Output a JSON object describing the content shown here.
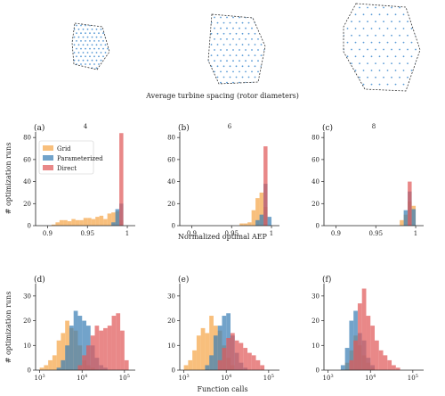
{
  "header": {
    "label": "Average turbine spacing (rotor diameters)"
  },
  "colors": {
    "grid": "#f5a64a",
    "parameterized": "#3b7fb5",
    "direct": "#e05a5a",
    "turbine": "#5a9bd6",
    "boundary": "#333333"
  },
  "legend": {
    "items": [
      "Grid",
      "Parameterized",
      "Direct"
    ]
  },
  "axes": {
    "ylabel_top": "# optimization runs",
    "ylabel_bottom": "# optimization runs",
    "xlabel_top": "Normalized optimal AEP",
    "xlabel_bottom": "Function calls"
  },
  "chart_data": [
    {
      "type": "bar",
      "panel": "(a)",
      "spacing": "4",
      "xlim": [
        0.885,
        1.01
      ],
      "ylim": [
        0,
        85
      ],
      "x_ticks": [
        "0.9",
        "0.95",
        "1"
      ],
      "y_ticks": [
        "0",
        "20",
        "40",
        "60",
        "80"
      ],
      "bin_edges": [
        0.905,
        0.91,
        0.915,
        0.92,
        0.925,
        0.93,
        0.935,
        0.94,
        0.945,
        0.95,
        0.955,
        0.96,
        0.965,
        0.97,
        0.975,
        0.98,
        0.985,
        0.99,
        0.995,
        1.0
      ],
      "series": [
        {
          "name": "Grid",
          "values": [
            1,
            3,
            5,
            5,
            4,
            6,
            5,
            5,
            7,
            7,
            6,
            8,
            9,
            6,
            11,
            12,
            13,
            5,
            0
          ]
        },
        {
          "name": "Parameterized",
          "values": [
            0,
            0,
            0,
            0,
            0,
            0,
            0,
            0,
            0,
            0,
            0,
            0,
            0,
            0,
            0,
            3,
            15,
            20,
            0
          ]
        },
        {
          "name": "Direct",
          "values": [
            0,
            0,
            0,
            0,
            0,
            0,
            0,
            0,
            0,
            0,
            0,
            0,
            0,
            0,
            0,
            0,
            0,
            84,
            0
          ]
        }
      ]
    },
    {
      "type": "bar",
      "panel": "(b)",
      "spacing": "6",
      "xlim": [
        0.885,
        1.01
      ],
      "ylim": [
        0,
        85
      ],
      "x_ticks": [
        "0.9",
        "0.95",
        "1"
      ],
      "y_ticks": [
        "0",
        "20",
        "40",
        "60",
        "80"
      ],
      "bin_edges": [
        0.905,
        0.91,
        0.915,
        0.92,
        0.925,
        0.93,
        0.935,
        0.94,
        0.945,
        0.95,
        0.955,
        0.96,
        0.965,
        0.97,
        0.975,
        0.98,
        0.985,
        0.99,
        0.995,
        1.0
      ],
      "series": [
        {
          "name": "Grid",
          "values": [
            0,
            0,
            0,
            0,
            0,
            0,
            0,
            0,
            0,
            0,
            0,
            2,
            2,
            3,
            14,
            25,
            30,
            17,
            0
          ]
        },
        {
          "name": "Parameterized",
          "values": [
            0,
            0,
            0,
            0,
            0,
            0,
            0,
            0,
            0,
            0,
            0,
            0,
            0,
            0,
            0,
            5,
            10,
            38,
            8
          ]
        },
        {
          "name": "Direct",
          "values": [
            0,
            0,
            0,
            0,
            0,
            0,
            0,
            0,
            0,
            0,
            0,
            0,
            0,
            0,
            0,
            0,
            0,
            72,
            0
          ]
        }
      ]
    },
    {
      "type": "bar",
      "panel": "(c)",
      "spacing": "8",
      "xlim": [
        0.885,
        1.01
      ],
      "ylim": [
        0,
        85
      ],
      "x_ticks": [
        "0.9",
        "0.95",
        "1"
      ],
      "y_ticks": [
        "0",
        "20",
        "40",
        "60",
        "80"
      ],
      "bin_edges": [
        0.905,
        0.91,
        0.915,
        0.92,
        0.925,
        0.93,
        0.935,
        0.94,
        0.945,
        0.95,
        0.955,
        0.96,
        0.965,
        0.97,
        0.975,
        0.98,
        0.985,
        0.99,
        0.995,
        1.0
      ],
      "series": [
        {
          "name": "Grid",
          "values": [
            0,
            0,
            0,
            0,
            0,
            0,
            0,
            0,
            0,
            0,
            0,
            0,
            0,
            0,
            0,
            5,
            10,
            22,
            18
          ]
        },
        {
          "name": "Parameterized",
          "values": [
            0,
            0,
            0,
            0,
            0,
            0,
            0,
            0,
            0,
            0,
            0,
            0,
            0,
            0,
            0,
            0,
            14,
            31,
            15
          ]
        },
        {
          "name": "Direct",
          "values": [
            0,
            0,
            0,
            0,
            0,
            0,
            0,
            0,
            0,
            0,
            0,
            0,
            0,
            0,
            0,
            0,
            0,
            40,
            0
          ]
        }
      ]
    },
    {
      "type": "bar",
      "panel": "(d)",
      "xscale": "log",
      "xlim": [
        800,
        180000
      ],
      "ylim": [
        0,
        35
      ],
      "x_ticks": [
        "10^3",
        "10^4",
        "10^5"
      ],
      "y_ticks": [
        "0",
        "10",
        "20",
        "30"
      ],
      "bin_edges": [
        1000,
        1259,
        1585,
        1995,
        2512,
        3162,
        3981,
        5012,
        6310,
        7943,
        10000,
        12589,
        15849,
        19953,
        25119,
        31623,
        39811,
        50119,
        63096,
        79433,
        100000,
        125893
      ],
      "series": [
        {
          "name": "Grid",
          "values": [
            1,
            2,
            4,
            6,
            12,
            15,
            20,
            17,
            16,
            10,
            4,
            2,
            1,
            0,
            0,
            0,
            0,
            0,
            0,
            0,
            0
          ]
        },
        {
          "name": "Parameterized",
          "values": [
            0,
            0,
            0,
            0,
            1,
            4,
            10,
            18,
            24,
            22,
            20,
            18,
            10,
            5,
            2,
            1,
            0,
            0,
            0,
            0,
            0
          ]
        },
        {
          "name": "Direct",
          "values": [
            0,
            0,
            0,
            0,
            0,
            0,
            0,
            0,
            0,
            2,
            6,
            10,
            14,
            18,
            16,
            17,
            18,
            22,
            23,
            16,
            4
          ]
        }
      ]
    },
    {
      "type": "bar",
      "panel": "(e)",
      "xscale": "log",
      "xlim": [
        800,
        180000
      ],
      "ylim": [
        0,
        35
      ],
      "x_ticks": [
        "10^3",
        "10^4",
        "10^5"
      ],
      "y_ticks": [
        "0",
        "10",
        "20",
        "30"
      ],
      "bin_edges": [
        1000,
        1259,
        1585,
        1995,
        2512,
        3162,
        3981,
        5012,
        6310,
        7943,
        10000,
        12589,
        15849,
        19953,
        25119,
        31623,
        39811,
        50119,
        63096,
        79433,
        100000,
        125893
      ],
      "series": [
        {
          "name": "Grid",
          "values": [
            2,
            4,
            8,
            14,
            17,
            15,
            22,
            18,
            16,
            10,
            5,
            2,
            0,
            0,
            0,
            0,
            0,
            0,
            0,
            0,
            0
          ]
        },
        {
          "name": "Parameterized",
          "values": [
            0,
            0,
            0,
            0,
            0,
            2,
            6,
            14,
            18,
            22,
            23,
            14,
            7,
            3,
            1,
            0,
            0,
            0,
            0,
            0,
            0
          ]
        },
        {
          "name": "Direct",
          "values": [
            0,
            0,
            0,
            0,
            0,
            0,
            0,
            0,
            4,
            9,
            13,
            15,
            12,
            11,
            9,
            7,
            6,
            4,
            2,
            0,
            0
          ]
        }
      ]
    },
    {
      "type": "bar",
      "panel": "(f)",
      "xscale": "log",
      "xlim": [
        800,
        180000
      ],
      "ylim": [
        0,
        35
      ],
      "x_ticks": [
        "10^3",
        "10^4",
        "10^5"
      ],
      "y_ticks": [
        "0",
        "10",
        "20",
        "30"
      ],
      "bin_edges": [
        1000,
        1259,
        1585,
        1995,
        2512,
        3162,
        3981,
        5012,
        6310,
        7943,
        10000,
        12589,
        15849,
        19953,
        25119,
        31623,
        39811,
        50119,
        63096,
        79433,
        100000,
        125893
      ],
      "series": [
        {
          "name": "Grid",
          "values": [
            0,
            0,
            0,
            0,
            3,
            8,
            14,
            10,
            6,
            3,
            1,
            0,
            0,
            0,
            0,
            0,
            0,
            0,
            0,
            0,
            0
          ]
        },
        {
          "name": "Parameterized",
          "values": [
            0,
            0,
            0,
            2,
            9,
            20,
            24,
            15,
            12,
            5,
            2,
            0,
            0,
            0,
            0,
            0,
            0,
            0,
            0,
            0,
            0
          ]
        },
        {
          "name": "Direct",
          "values": [
            0,
            0,
            0,
            0,
            0,
            4,
            12,
            27,
            33,
            22,
            18,
            12,
            8,
            6,
            4,
            2,
            1,
            0,
            0,
            0,
            0
          ]
        }
      ]
    }
  ]
}
